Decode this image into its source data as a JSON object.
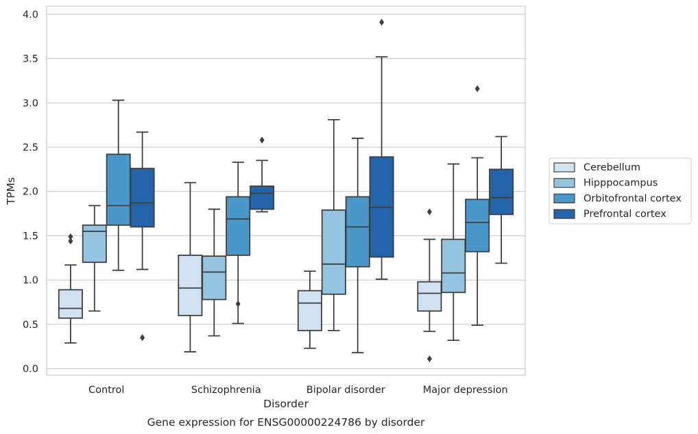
{
  "chart_data": {
    "type": "box",
    "caption": "Gene expression for ENSG00000224786 by disorder",
    "xlabel": "Disorder",
    "ylabel": "TPMs",
    "ylim": [
      -0.05,
      4.1
    ],
    "yticks": [
      0.0,
      0.5,
      1.0,
      1.5,
      2.0,
      2.5,
      3.0,
      3.5,
      4.0
    ],
    "ytick_labels": [
      "0.0",
      "0.5",
      "1.0",
      "1.5",
      "2.0",
      "2.5",
      "3.0",
      "3.5",
      "4.0"
    ],
    "grid": "y",
    "legend_position": "right",
    "categories": [
      "Control",
      "Schizophrenia",
      "Bipolar disorder",
      "Major depression"
    ],
    "series": [
      {
        "name": "Cerebellum",
        "color": "#d0e1f2",
        "boxes": [
          {
            "whislo": 0.29,
            "q1": 0.57,
            "med": 0.68,
            "q3": 0.89,
            "whishi": 1.17,
            "fliers": [
              1.44,
              1.49
            ]
          },
          {
            "whislo": 0.19,
            "q1": 0.6,
            "med": 0.91,
            "q3": 1.28,
            "whishi": 2.1,
            "fliers": []
          },
          {
            "whislo": 0.23,
            "q1": 0.43,
            "med": 0.74,
            "q3": 0.88,
            "whishi": 1.1,
            "fliers": []
          },
          {
            "whislo": 0.42,
            "q1": 0.65,
            "med": 0.85,
            "q3": 0.98,
            "whishi": 1.46,
            "fliers": [
              0.11,
              1.77
            ]
          }
        ]
      },
      {
        "name": "Hipppocampus",
        "color": "#94c4df",
        "boxes": [
          {
            "whislo": 0.65,
            "q1": 1.2,
            "med": 1.55,
            "q3": 1.62,
            "whishi": 1.84,
            "fliers": []
          },
          {
            "whislo": 0.37,
            "q1": 0.78,
            "med": 1.09,
            "q3": 1.27,
            "whishi": 1.8,
            "fliers": []
          },
          {
            "whislo": 0.43,
            "q1": 0.84,
            "med": 1.18,
            "q3": 1.79,
            "whishi": 2.81,
            "fliers": []
          },
          {
            "whislo": 0.32,
            "q1": 0.86,
            "med": 1.08,
            "q3": 1.46,
            "whishi": 2.31,
            "fliers": []
          }
        ]
      },
      {
        "name": "Orbitofrontal cortex",
        "color": "#4a98c9",
        "boxes": [
          {
            "whislo": 1.11,
            "q1": 1.62,
            "med": 1.84,
            "q3": 2.42,
            "whishi": 3.03,
            "fliers": []
          },
          {
            "whislo": 0.51,
            "q1": 1.28,
            "med": 1.69,
            "q3": 1.94,
            "whishi": 2.33,
            "fliers": [
              0.73
            ]
          },
          {
            "whislo": 0.18,
            "q1": 1.15,
            "med": 1.6,
            "q3": 1.94,
            "whishi": 2.6,
            "fliers": []
          },
          {
            "whislo": 0.49,
            "q1": 1.32,
            "med": 1.65,
            "q3": 1.91,
            "whishi": 2.38,
            "fliers": [
              3.16
            ]
          }
        ]
      },
      {
        "name": "Prefrontal cortex",
        "color": "#2464ab",
        "boxes": [
          {
            "whislo": 1.12,
            "q1": 1.6,
            "med": 1.87,
            "q3": 2.26,
            "whishi": 2.67,
            "fliers": [
              0.35
            ]
          },
          {
            "whislo": 1.77,
            "q1": 1.8,
            "med": 1.98,
            "q3": 2.06,
            "whishi": 2.35,
            "fliers": [
              2.58
            ]
          },
          {
            "whislo": 1.01,
            "q1": 1.26,
            "med": 1.82,
            "q3": 2.39,
            "whishi": 3.52,
            "fliers": [
              3.91
            ]
          },
          {
            "whislo": 1.19,
            "q1": 1.74,
            "med": 1.93,
            "q3": 2.25,
            "whishi": 2.62,
            "fliers": []
          }
        ]
      }
    ]
  }
}
